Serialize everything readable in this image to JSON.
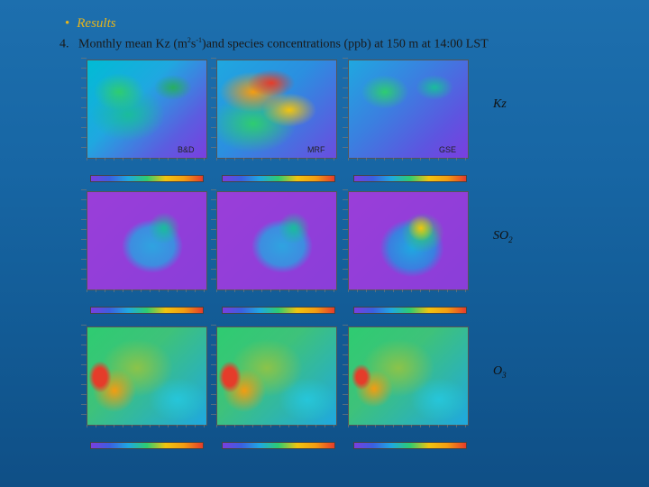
{
  "slide": {
    "bullet": "Results",
    "title": {
      "index": "4.",
      "pre": "Monthly mean  Kz  (m",
      "sup1": "2",
      "mid": "s",
      "sup2": "-1",
      "post": ")and species concentrations (ppb)  at  150 m at 14:00 LST"
    }
  },
  "rows": [
    {
      "label": "Kz",
      "sub": ""
    },
    {
      "label": "SO",
      "sub": "2"
    },
    {
      "label": "O",
      "sub": "3"
    }
  ],
  "schemes": [
    "B&D",
    "MRF",
    "GSE"
  ],
  "colors": {
    "background": "#1766a4",
    "bullet": "#e8b51a",
    "kz_low": "#8a2be2",
    "so2_ocean": "#9a3ed9",
    "o3_high": "#e53c2a"
  }
}
